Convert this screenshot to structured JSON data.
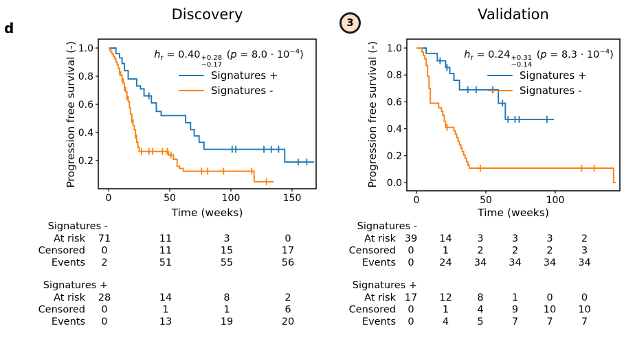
{
  "figure": {
    "panel_letter": "d",
    "badge_number": "3",
    "colors": {
      "signatures_plus": "#1f77b4",
      "signatures_minus": "#ff7f0e",
      "badge_fill": "#fbe2cf",
      "badge_border": "#1b1b1b",
      "axis": "#000000"
    }
  },
  "chart_data": [
    {
      "type": "line",
      "subtype": "kaplan_meier_step",
      "title": "Discovery",
      "xlabel": "Time (weeks)",
      "ylabel": "Progression free survival (-)",
      "xlim": [
        -9,
        170
      ],
      "ylim": [
        0.0,
        1.06
      ],
      "x_ticks": [
        0,
        50,
        100,
        150
      ],
      "y_ticks": [
        1.0,
        0.8,
        0.6,
        0.4,
        0.2
      ],
      "grid": false,
      "legend_position": "upper right, frameless",
      "stats": {
        "hazard_ratio": 0.4,
        "ci_upper": 0.28,
        "ci_lower": 0.17,
        "p_value": 0.0008
      },
      "annotation": {
        "h": "h",
        "h_sub": "r",
        "eq": " = 0.40",
        "ci_plus": "+0.28",
        "ci_minus": "−0.17",
        "p_open": " (",
        "p": "p",
        "p_eq": " = 8.0 · 10",
        "p_exp": "−4",
        "p_close": ")"
      },
      "series": [
        {
          "id": "signatures-plus",
          "name": "Signatures +",
          "color": "#1f77b4",
          "steps": [
            [
              0,
              1
            ],
            [
              6,
              0.96
            ],
            [
              9,
              0.93
            ],
            [
              11,
              0.89
            ],
            [
              13,
              0.84
            ],
            [
              16,
              0.78
            ],
            [
              23,
              0.73
            ],
            [
              26,
              0.71
            ],
            [
              29,
              0.66
            ],
            [
              35,
              0.61
            ],
            [
              39,
              0.55
            ],
            [
              43,
              0.52
            ],
            [
              63,
              0.47
            ],
            [
              67,
              0.42
            ],
            [
              70,
              0.375
            ],
            [
              74,
              0.33
            ],
            [
              78,
              0.28
            ],
            [
              144,
              0.19
            ]
          ],
          "end": 168,
          "censors": [
            [
              33,
              0.66
            ],
            [
              101,
              0.28
            ],
            [
              104,
              0.28
            ],
            [
              127,
              0.28
            ],
            [
              133,
              0.28
            ],
            [
              139,
              0.28
            ],
            [
              155,
              0.19
            ],
            [
              162,
              0.19
            ]
          ]
        },
        {
          "id": "signatures-minus",
          "name": "Signatures -",
          "color": "#ff7f0e",
          "steps": [
            [
              0,
              1
            ],
            [
              1,
              0.985
            ],
            [
              2,
              0.97
            ],
            [
              3,
              0.955
            ],
            [
              4,
              0.94
            ],
            [
              5,
              0.925
            ],
            [
              6,
              0.9
            ],
            [
              7,
              0.88
            ],
            [
              8,
              0.855
            ],
            [
              9,
              0.83
            ],
            [
              10,
              0.805
            ],
            [
              11,
              0.78
            ],
            [
              12,
              0.75
            ],
            [
              13,
              0.72
            ],
            [
              14,
              0.69
            ],
            [
              15,
              0.655
            ],
            [
              16,
              0.62
            ],
            [
              17,
              0.575
            ],
            [
              18,
              0.53
            ],
            [
              19,
              0.49
            ],
            [
              20,
              0.45
            ],
            [
              21,
              0.42
            ],
            [
              22,
              0.38
            ],
            [
              23,
              0.33
            ],
            [
              24,
              0.295
            ],
            [
              25,
              0.265
            ],
            [
              49,
              0.24
            ],
            [
              53,
              0.21
            ],
            [
              56,
              0.16
            ],
            [
              58,
              0.145
            ],
            [
              61,
              0.125
            ],
            [
              119,
              0.05
            ]
          ],
          "end": 135,
          "censors": [
            [
              9,
              0.83
            ],
            [
              11,
              0.78
            ],
            [
              13,
              0.72
            ],
            [
              15,
              0.655
            ],
            [
              19,
              0.49
            ],
            [
              22,
              0.38
            ],
            [
              27,
              0.265
            ],
            [
              33,
              0.265
            ],
            [
              36,
              0.265
            ],
            [
              44,
              0.265
            ],
            [
              48,
              0.265
            ],
            [
              51,
              0.24
            ],
            [
              76,
              0.125
            ],
            [
              81,
              0.125
            ],
            [
              94,
              0.125
            ],
            [
              117,
              0.125
            ],
            [
              129,
              0.05
            ]
          ]
        }
      ],
      "risk_table": {
        "times": [
          0,
          50,
          100,
          150
        ],
        "row_labels": [
          "At risk",
          "Censored",
          "Events"
        ],
        "groups": [
          {
            "name": "Signatures -",
            "at_risk": [
              71,
              11,
              3,
              0
            ],
            "censored": [
              0,
              11,
              15,
              17
            ],
            "events": [
              2,
              51,
              55,
              56
            ]
          },
          {
            "name": "Signatures +",
            "at_risk": [
              28,
              14,
              8,
              2
            ],
            "censored": [
              0,
              1,
              1,
              6
            ],
            "events": [
              0,
              13,
              19,
              20
            ]
          }
        ]
      }
    },
    {
      "type": "line",
      "subtype": "kaplan_meier_step",
      "title": "Validation",
      "xlabel": "Time (weeks)",
      "ylabel": "Progression free survival (-)",
      "xlim": [
        -7,
        147
      ],
      "ylim": [
        -0.06,
        1.06
      ],
      "x_ticks": [
        0,
        50,
        100
      ],
      "y_ticks": [
        1.0,
        0.8,
        0.6,
        0.4,
        0.2,
        0.0
      ],
      "grid": false,
      "legend_position": "upper right, frameless",
      "stats": {
        "hazard_ratio": 0.24,
        "ci_upper": 0.31,
        "ci_lower": 0.14,
        "p_value": 0.00083
      },
      "annotation": {
        "h": "h",
        "h_sub": "r",
        "eq": " = 0.24",
        "ci_plus": "+0.31",
        "ci_minus": "−0.14",
        "p_open": " (",
        "p": "p",
        "p_eq": " = 8.3 · 10",
        "p_exp": "−4",
        "p_close": ")"
      },
      "series": [
        {
          "id": "signatures-plus",
          "name": "Signatures +",
          "color": "#1f77b4",
          "steps": [
            [
              0,
              1
            ],
            [
              7,
              0.96
            ],
            [
              15,
              0.905
            ],
            [
              21,
              0.855
            ],
            [
              24,
              0.81
            ],
            [
              27,
              0.76
            ],
            [
              31,
              0.69
            ],
            [
              59,
              0.59
            ],
            [
              64,
              0.47
            ]
          ],
          "end": 99,
          "censors": [
            [
              17,
              0.905
            ],
            [
              22,
              0.855
            ],
            [
              37,
              0.69
            ],
            [
              43,
              0.69
            ],
            [
              55,
              0.69
            ],
            [
              62,
              0.59
            ],
            [
              66,
              0.47
            ],
            [
              71,
              0.47
            ],
            [
              74,
              0.47
            ],
            [
              94,
              0.47
            ]
          ]
        },
        {
          "id": "signatures-minus",
          "name": "Signatures -",
          "color": "#ff7f0e",
          "steps": [
            [
              0,
              1
            ],
            [
              4,
              0.97
            ],
            [
              5,
              0.945
            ],
            [
              6,
              0.92
            ],
            [
              7,
              0.87
            ],
            [
              8,
              0.79
            ],
            [
              9,
              0.7
            ],
            [
              10,
              0.59
            ],
            [
              16,
              0.555
            ],
            [
              18,
              0.53
            ],
            [
              19,
              0.5
            ],
            [
              20,
              0.455
            ],
            [
              21,
              0.41
            ],
            [
              27,
              0.385
            ],
            [
              28,
              0.36
            ],
            [
              29,
              0.335
            ],
            [
              30,
              0.305
            ],
            [
              31,
              0.28
            ],
            [
              32,
              0.255
            ],
            [
              33,
              0.23
            ],
            [
              34,
              0.205
            ],
            [
              35,
              0.18
            ],
            [
              36,
              0.155
            ],
            [
              37,
              0.13
            ],
            [
              38,
              0.107
            ],
            [
              142,
              0
            ]
          ],
          "end": 143.5,
          "censors": [
            [
              22,
              0.41
            ],
            [
              46,
              0.107
            ],
            [
              119,
              0.107
            ],
            [
              128,
              0.107
            ]
          ]
        }
      ],
      "risk_table": {
        "times": [
          0,
          25,
          50,
          75,
          100,
          125
        ],
        "row_labels": [
          "At risk",
          "Censored",
          "Events"
        ],
        "groups": [
          {
            "name": "Signatures -",
            "at_risk": [
              39,
              14,
              3,
              3,
              3,
              2
            ],
            "censored": [
              0,
              1,
              2,
              2,
              2,
              3
            ],
            "events": [
              0,
              24,
              34,
              34,
              34,
              34
            ]
          },
          {
            "name": "Signatures +",
            "at_risk": [
              17,
              12,
              8,
              1,
              0,
              0
            ],
            "censored": [
              0,
              1,
              4,
              9,
              10,
              10
            ],
            "events": [
              0,
              4,
              5,
              7,
              7,
              7
            ]
          }
        ]
      }
    }
  ]
}
